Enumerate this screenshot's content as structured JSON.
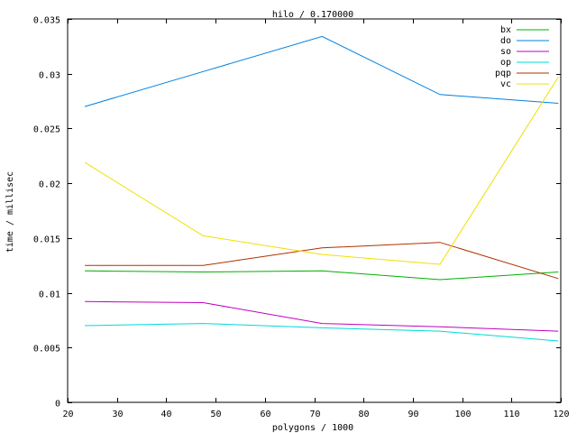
{
  "chart_data": {
    "type": "line",
    "title": "hilo / 0.170000",
    "xlabel": "polygons / 1000",
    "ylabel": "time / millisec",
    "xlim": [
      20,
      120
    ],
    "ylim": [
      0,
      0.035
    ],
    "x_ticks": [
      20,
      30,
      40,
      50,
      60,
      70,
      80,
      90,
      100,
      110,
      120
    ],
    "y_ticks": [
      0,
      0.005,
      0.01,
      0.015,
      0.02,
      0.025,
      0.03,
      0.035
    ],
    "x_tick_labels": [
      "20",
      "30",
      "40",
      "50",
      "60",
      "70",
      "80",
      "90",
      "100",
      "110",
      "120"
    ],
    "y_tick_labels": [
      "0",
      "0.005",
      "0.01",
      "0.015",
      "0.02",
      "0.025",
      "0.03",
      "0.035"
    ],
    "grid": false,
    "legend_position": "top-right",
    "x": [
      23.5,
      47.5,
      71.6,
      95.5,
      119.5
    ],
    "series": [
      {
        "name": "bx",
        "color": "#00b000",
        "values": [
          0.012,
          0.0119,
          0.012,
          0.0112,
          0.0119
        ]
      },
      {
        "name": "do",
        "color": "#0080e0",
        "values": [
          0.027,
          0.0302,
          0.0334,
          0.0281,
          0.0273
        ]
      },
      {
        "name": "so",
        "color": "#c000c0",
        "values": [
          0.0092,
          0.0091,
          0.0072,
          0.0069,
          0.0065
        ]
      },
      {
        "name": "op",
        "color": "#00d8d8",
        "values": [
          0.007,
          0.0072,
          0.0068,
          0.0065,
          0.0056
        ]
      },
      {
        "name": "pqp",
        "color": "#b03000",
        "values": [
          0.0125,
          0.0125,
          0.0141,
          0.0146,
          0.0113
        ]
      },
      {
        "name": "vc",
        "color": "#f0e000",
        "values": [
          0.0219,
          0.0152,
          0.0135,
          0.0126,
          0.0297
        ]
      }
    ]
  }
}
